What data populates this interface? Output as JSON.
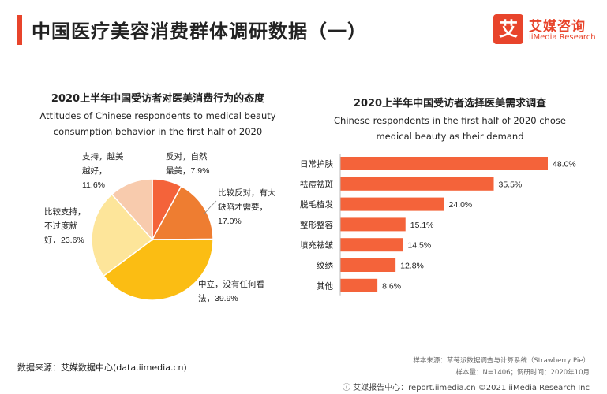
{
  "header": {
    "title": "中国医疗美容消费群体调研数据（一）",
    "logo_mark": "艾",
    "logo_cn": "艾媒咨询",
    "logo_en": "iiMedia Research",
    "accent_color": "#e8442b"
  },
  "chart_data": [
    {
      "type": "pie",
      "title_cn": "2020上半年中国受访者对医美消费行为的态度",
      "title_en_line1": "Attitudes of Chinese respondents to medical beauty",
      "title_en_line2": "consumption behavior in the first half of 2020",
      "slices": [
        {
          "label_lines": [
            "反对，自然",
            "最美，7.9%"
          ],
          "value": 7.9,
          "color": "#f4633a"
        },
        {
          "label_lines": [
            "比较反对，有大",
            "缺陷才需要，",
            "17.0%"
          ],
          "value": 17.0,
          "color": "#ee7d31"
        },
        {
          "label_lines": [
            "中立，没有任何看",
            "法，39.9%"
          ],
          "value": 39.9,
          "color": "#fbbd13"
        },
        {
          "label_lines": [
            "比较支持，",
            "不过度就",
            "好，23.6%"
          ],
          "value": 23.6,
          "color": "#fde59a"
        },
        {
          "label_lines": [
            "支持，越美",
            "越好，",
            "11.6%"
          ],
          "value": 11.6,
          "color": "#f8cbad"
        }
      ]
    },
    {
      "type": "bar",
      "orientation": "horizontal",
      "title_cn": "2020上半年中国受访者选择医美需求调查",
      "title_en_line1": "Chinese respondents in the first half of 2020 chose",
      "title_en_line2": "medical beauty as their demand",
      "categories": [
        "日常护肤",
        "祛痘祛斑",
        "脱毛植发",
        "整形整容",
        "填充祛皱",
        "纹绣",
        "其他"
      ],
      "values": [
        48.0,
        35.5,
        24.0,
        15.1,
        14.5,
        12.8,
        8.6
      ],
      "value_labels": [
        "48.0%",
        "35.5%",
        "24.0%",
        "15.1%",
        "14.5%",
        "12.8%",
        "8.6%"
      ],
      "unit": "%",
      "xlim": [
        0,
        48
      ],
      "color": "#f4633a"
    }
  ],
  "footer": {
    "source": "数据来源：艾媒数据中心(data.iimedia.cn)",
    "note_line1": "样本来源：草莓派数据调查与计算系统（Strawberry Pie）",
    "note_line2": "样本量：N=1406；调研时间：2020年10月",
    "credit": "ⓘ 艾媒报告中心：report.iimedia.cn   ©2021  iiMedia Research  Inc"
  }
}
